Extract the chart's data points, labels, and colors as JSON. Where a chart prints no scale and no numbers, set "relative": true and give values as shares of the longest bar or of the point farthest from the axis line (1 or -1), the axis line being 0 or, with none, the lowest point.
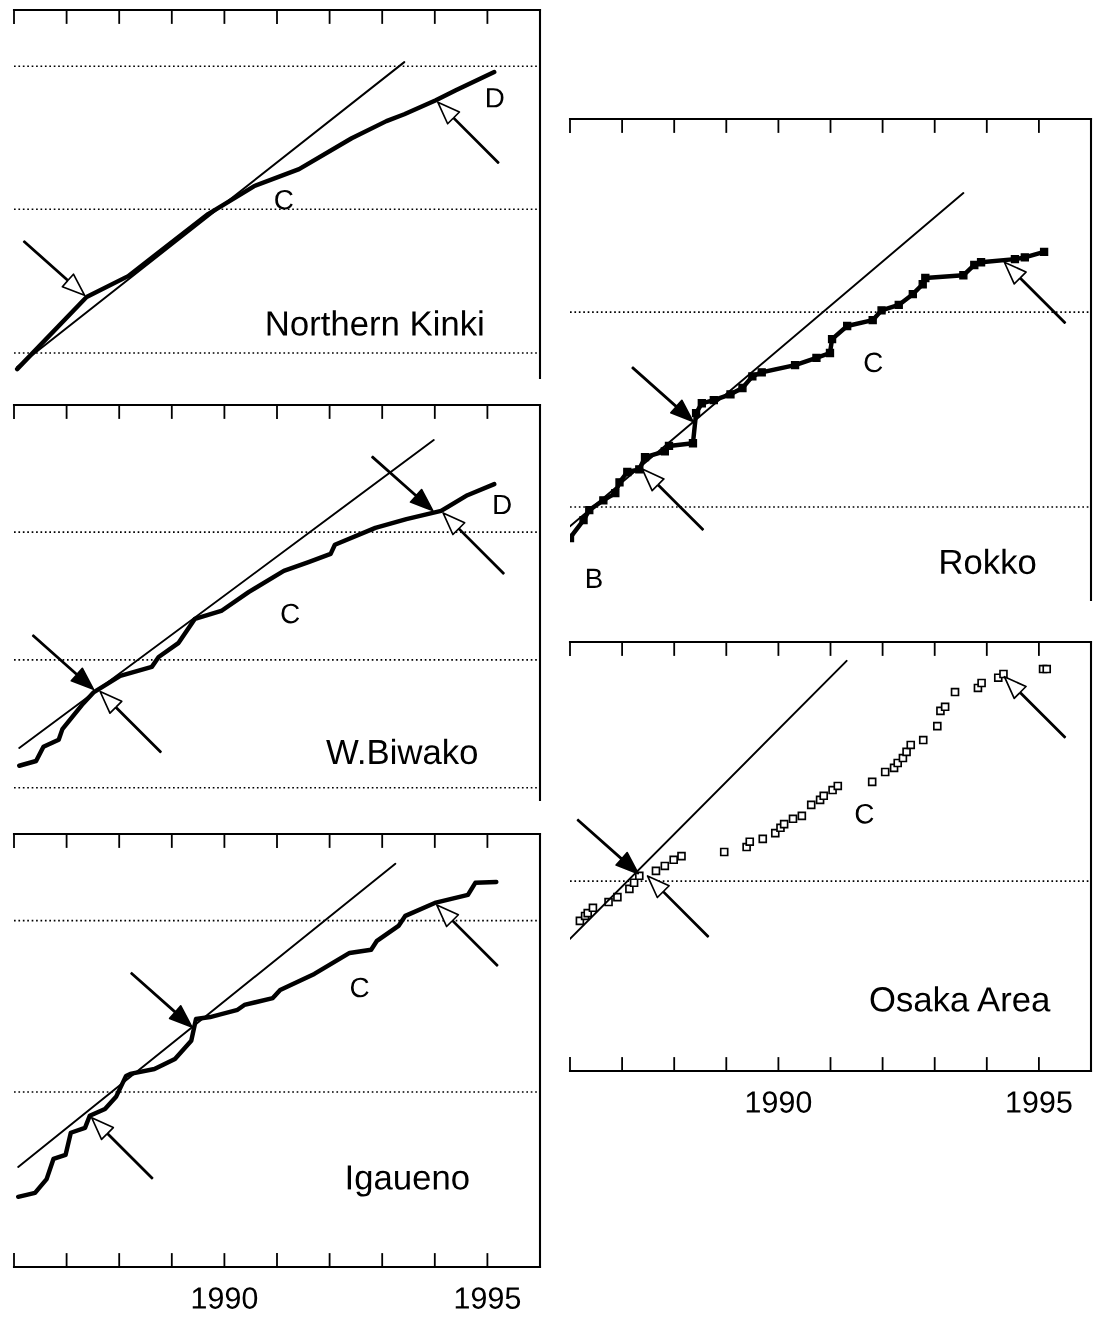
{
  "chart_data": [
    {
      "type": "line",
      "title": "Northern Kinki",
      "relative": true,
      "xlim": [
        1986,
        1996
      ],
      "xticks": [
        1986,
        1987,
        1988,
        1989,
        1990,
        1991,
        1992,
        1993,
        1994,
        1995
      ],
      "tick_labels": false,
      "series": [
        {
          "color": "#000000",
          "marker": "none",
          "x": [
            1986.06,
            1987.38,
            1988.17,
            1989.69,
            1990.56,
            1991.42,
            1992.42,
            1993.08,
            1993.42,
            1994.02,
            1994.4,
            1995.13
          ],
          "values": [
            0.105,
            0.315,
            0.376,
            0.557,
            0.638,
            0.688,
            0.778,
            0.828,
            0.848,
            0.889,
            0.918,
            0.971
          ]
        },
        {
          "type": "line",
          "color": "#000000",
          "x": [
            1986.06,
            1993.42
          ],
          "values": [
            0.111,
            1.0
          ]
        }
      ],
      "ref_lines": [
        {
          "axis": "y",
          "value": 0.988,
          "line_style": "dotted"
        },
        {
          "axis": "y",
          "value": 0.571,
          "line_style": "dotted"
        },
        {
          "axis": "y",
          "value": 0.152,
          "line_style": "dotted"
        }
      ],
      "annotations": [
        "C",
        "D"
      ]
    },
    {
      "type": "line",
      "title": "Rokko",
      "relative": true,
      "xlim": [
        1986,
        1996
      ],
      "xticks": [
        1986,
        1987,
        1988,
        1989,
        1990,
        1991,
        1992,
        1993,
        1994,
        1995
      ],
      "tick_labels": false,
      "series": [
        {
          "color": "#000000",
          "marker": "square",
          "x": [
            1986.0,
            1986.26,
            1986.37,
            1986.64,
            1986.87,
            1986.95,
            1987.1,
            1987.33,
            1987.44,
            1987.82,
            1987.9,
            1988.36,
            1988.42,
            1988.53,
            1988.76,
            1989.08,
            1989.31,
            1989.5,
            1989.68,
            1990.32,
            1990.73,
            1990.99,
            1991.03,
            1991.32,
            1991.81,
            1991.98,
            1992.31,
            1992.58,
            1992.77,
            1992.82,
            1993.55,
            1993.76,
            1993.89,
            1994.54,
            1994.73,
            1995.1
          ],
          "values": [
            0.232,
            0.272,
            0.294,
            0.316,
            0.332,
            0.356,
            0.379,
            0.385,
            0.412,
            0.425,
            0.437,
            0.443,
            0.51,
            0.532,
            0.539,
            0.552,
            0.566,
            0.592,
            0.601,
            0.617,
            0.633,
            0.644,
            0.675,
            0.704,
            0.717,
            0.739,
            0.751,
            0.775,
            0.797,
            0.811,
            0.817,
            0.84,
            0.846,
            0.853,
            0.857,
            0.869
          ]
        },
        {
          "type": "line",
          "color": "#000000",
          "x": [
            1986.0,
            1993.55
          ],
          "values": [
            0.258,
            1.0
          ]
        }
      ],
      "ref_lines": [
        {
          "axis": "y",
          "value": 0.735,
          "line_style": "dotted"
        },
        {
          "axis": "y",
          "value": 0.301,
          "line_style": "dotted"
        }
      ],
      "annotations": [
        "C",
        "B"
      ]
    },
    {
      "type": "line",
      "title": "W.Biwako",
      "relative": true,
      "xlim": [
        1986,
        1996
      ],
      "xticks": [
        1986,
        1987,
        1988,
        1989,
        1990,
        1991,
        1992,
        1993,
        1994,
        1995
      ],
      "tick_labels": false,
      "series": [
        {
          "color": "#000000",
          "marker": "none",
          "x": [
            1986.1,
            1986.42,
            1986.56,
            1986.85,
            1986.92,
            1987.29,
            1987.52,
            1988.02,
            1988.62,
            1988.75,
            1989.13,
            1989.44,
            1989.94,
            1990.46,
            1991.13,
            1991.6,
            1992.02,
            1992.1,
            1992.87,
            1993.46,
            1994.12,
            1994.62,
            1995.13
          ],
          "values": [
            0.173,
            0.185,
            0.221,
            0.239,
            0.266,
            0.327,
            0.36,
            0.401,
            0.424,
            0.449,
            0.485,
            0.546,
            0.566,
            0.614,
            0.668,
            0.69,
            0.711,
            0.734,
            0.777,
            0.799,
            0.82,
            0.86,
            0.888
          ]
        },
        {
          "type": "line",
          "color": "#000000",
          "x": [
            1986.1,
            1993.98
          ],
          "values": [
            0.218,
            1.0
          ]
        }
      ],
      "ref_lines": [
        {
          "axis": "y",
          "value": 0.766,
          "line_style": "dotted"
        },
        {
          "axis": "y",
          "value": 0.442,
          "line_style": "dotted"
        },
        {
          "axis": "y",
          "value": 0.117,
          "line_style": "dotted"
        }
      ],
      "annotations": [
        "C",
        "D"
      ]
    },
    {
      "type": "scatter",
      "title": "Osaka Area",
      "relative": true,
      "xlim": [
        1986,
        1996
      ],
      "xticks": [
        {
          "value": 1986,
          "label": null
        },
        {
          "value": 1987,
          "label": null
        },
        {
          "value": 1988,
          "label": null
        },
        {
          "value": 1989,
          "label": null
        },
        1990,
        {
          "value": 1991,
          "label": null
        },
        {
          "value": 1992,
          "label": null
        },
        {
          "value": 1993,
          "label": null
        },
        {
          "value": 1994,
          "label": null
        },
        1995
      ],
      "tick_labels": "x",
      "series": [
        {
          "color": "#000000",
          "marker": "square",
          "x": [
            1986.19,
            1986.29,
            1986.34,
            1986.44,
            1986.74,
            1986.91,
            1987.14,
            1987.23,
            1987.33,
            1987.65,
            1987.82,
            1987.99,
            1988.14,
            1988.96,
            1989.39,
            1989.45,
            1989.7,
            1989.94,
            1990.04,
            1990.11,
            1990.28,
            1990.45,
            1990.63,
            1990.8,
            1990.87,
            1991.04,
            1991.14,
            1991.8,
            1992.05,
            1992.22,
            1992.29,
            1992.39,
            1992.46,
            1992.54,
            1992.78,
            1993.05,
            1993.11,
            1993.2,
            1993.39,
            1993.83,
            1993.9,
            1994.22,
            1994.32,
            1995.08,
            1995.15
          ],
          "values": [
            0.366,
            0.378,
            0.385,
            0.398,
            0.412,
            0.424,
            0.444,
            0.459,
            0.476,
            0.488,
            0.5,
            0.515,
            0.524,
            0.534,
            0.546,
            0.559,
            0.566,
            0.58,
            0.593,
            0.602,
            0.615,
            0.622,
            0.649,
            0.661,
            0.671,
            0.685,
            0.695,
            0.705,
            0.729,
            0.739,
            0.751,
            0.763,
            0.778,
            0.795,
            0.807,
            0.841,
            0.878,
            0.888,
            0.924,
            0.934,
            0.946,
            0.959,
            0.968,
            0.98,
            0.98
          ]
        },
        {
          "type": "line",
          "color": "#000000",
          "x": [
            1986.0,
            1991.31
          ],
          "values": [
            0.322,
            1.0
          ]
        }
      ],
      "ref_lines": [
        {
          "axis": "y",
          "value": 0.463,
          "line_style": "dotted"
        }
      ],
      "annotations": [
        "C"
      ]
    },
    {
      "type": "line",
      "title": "Igaueno",
      "relative": true,
      "xlim": [
        1986,
        1996
      ],
      "xticks": [
        {
          "value": 1986,
          "label": null
        },
        {
          "value": 1987,
          "label": null
        },
        {
          "value": 1988,
          "label": null
        },
        {
          "value": 1989,
          "label": null
        },
        1990,
        {
          "value": 1991,
          "label": null
        },
        {
          "value": 1992,
          "label": null
        },
        {
          "value": 1993,
          "label": null
        },
        {
          "value": 1994,
          "label": null
        },
        1995
      ],
      "tick_labels": "x",
      "series": [
        {
          "color": "#000000",
          "marker": "none",
          "x": [
            1986.08,
            1986.4,
            1986.62,
            1986.75,
            1986.98,
            1987.08,
            1987.35,
            1987.44,
            1987.73,
            1987.94,
            1988.13,
            1988.21,
            1988.67,
            1989.06,
            1989.37,
            1989.46,
            1989.73,
            1990.25,
            1990.38,
            1990.92,
            1991.06,
            1991.71,
            1992.38,
            1992.79,
            1992.9,
            1993.31,
            1993.44,
            1994.0,
            1994.63,
            1994.77,
            1995.17
          ],
          "values": [
            0.174,
            0.184,
            0.218,
            0.268,
            0.278,
            0.333,
            0.345,
            0.375,
            0.392,
            0.422,
            0.474,
            0.479,
            0.491,
            0.516,
            0.561,
            0.615,
            0.62,
            0.638,
            0.65,
            0.667,
            0.687,
            0.727,
            0.779,
            0.787,
            0.809,
            0.846,
            0.871,
            0.903,
            0.923,
            0.953,
            0.955
          ]
        },
        {
          "type": "line",
          "color": "#000000",
          "x": [
            1986.08,
            1993.25
          ],
          "values": [
            0.248,
            1.0
          ]
        }
      ],
      "ref_lines": [
        {
          "axis": "y",
          "value": 0.859,
          "line_style": "dotted"
        },
        {
          "axis": "y",
          "value": 0.434,
          "line_style": "dotted"
        }
      ],
      "annotations": [
        "C"
      ]
    }
  ]
}
